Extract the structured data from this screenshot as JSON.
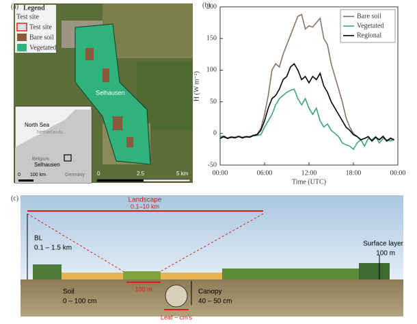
{
  "chart_data": {
    "type": "line",
    "panel_label": "(b)",
    "xlabel": "Time (UTC)",
    "ylabel": "H (W m⁻²)",
    "x": [
      0,
      0.5,
      1,
      1.5,
      2,
      2.5,
      3,
      3.5,
      4,
      4.5,
      5,
      5.5,
      6,
      6.5,
      7,
      7.5,
      8,
      8.5,
      9,
      9.5,
      10,
      10.5,
      11,
      11.5,
      12,
      12.5,
      13,
      13.5,
      14,
      14.5,
      15,
      15.5,
      16,
      16.5,
      17,
      17.5,
      18,
      18.5,
      19,
      19.5,
      20,
      20.5,
      21,
      21.5,
      22,
      22.5,
      23,
      23.5
    ],
    "xlim": [
      0,
      24
    ],
    "xticks": [
      {
        "value": 0,
        "label": "00:00"
      },
      {
        "value": 6,
        "label": "06:00"
      },
      {
        "value": 12,
        "label": "12:00"
      },
      {
        "value": 18,
        "label": "18:00"
      },
      {
        "value": 24,
        "label": "00:00"
      }
    ],
    "ylim": [
      -50,
      200
    ],
    "yticks": [
      -50,
      0,
      50,
      100,
      150,
      200
    ],
    "legend": "upper right",
    "series": [
      {
        "name": "Bare soil",
        "color": "#8c7064",
        "values": [
          -5,
          -4,
          -7,
          -5,
          -6,
          -4,
          -6,
          -5,
          -5,
          -3,
          -1,
          8,
          30,
          60,
          100,
          110,
          105,
          125,
          140,
          155,
          170,
          185,
          188,
          165,
          170,
          168,
          175,
          182,
          150,
          140,
          110,
          90,
          70,
          50,
          25,
          10,
          0,
          -5,
          -10,
          -8,
          -5,
          -12,
          -6,
          -10,
          -4,
          -12,
          -7,
          -10
        ]
      },
      {
        "name": "Vegetated",
        "color": "#3aa57a",
        "values": [
          -5,
          -6,
          -8,
          -6,
          -7,
          -5,
          -7,
          -6,
          -6,
          -4,
          -3,
          -2,
          10,
          20,
          30,
          45,
          55,
          60,
          65,
          68,
          70,
          55,
          45,
          55,
          40,
          30,
          40,
          20,
          10,
          15,
          5,
          0,
          -5,
          -15,
          -18,
          -20,
          -25,
          -15,
          -10,
          -20,
          -8,
          -10,
          -5,
          -15,
          -8,
          -10,
          -12,
          -10
        ]
      },
      {
        "name": "Regional",
        "color": "#000000",
        "values": [
          -8,
          -5,
          -8,
          -6,
          -7,
          -5,
          -7,
          -5,
          -6,
          -3,
          -2,
          5,
          20,
          40,
          55,
          60,
          70,
          85,
          90,
          105,
          110,
          100,
          85,
          90,
          80,
          90,
          85,
          95,
          75,
          65,
          50,
          40,
          30,
          20,
          10,
          5,
          -2,
          -5,
          -10,
          -8,
          -5,
          -12,
          -6,
          -10,
          -5,
          -12,
          -8,
          -10
        ]
      }
    ]
  },
  "map": {
    "panel_label": "(a)",
    "legend_title": "Legend",
    "legend_header": "Test site",
    "legend_items": [
      "Test site",
      "Bare soil",
      "Vegetated"
    ],
    "site": "Selhausen",
    "inset_labels": [
      "North Sea",
      "Netherlands",
      "Belgium",
      "Selhausen",
      "Germany"
    ],
    "inset_scale": [
      "0",
      "100 km"
    ],
    "scale": [
      "0",
      "2.5",
      "5 km"
    ]
  },
  "diagram": {
    "panel_label": "(c)",
    "landscape": "Landscape",
    "landscape_range": "0.1–10 km",
    "bl": "BL",
    "bl_range": "0.1 – 1.5 km",
    "surface": "Surface layer",
    "surface_range": "100 m",
    "soil": "Soil",
    "soil_range": "0 – 100 cm",
    "canopy": "Canopy",
    "canopy_range": "40 – 50 cm",
    "patch": "100 m",
    "leaf": "Leaf ~ cm's"
  }
}
